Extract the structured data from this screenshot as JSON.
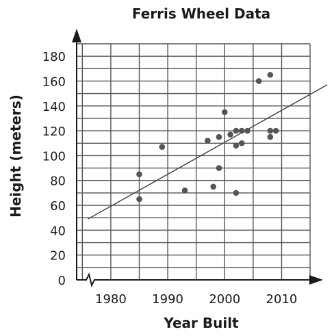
{
  "chart_data": {
    "type": "scatter",
    "title": "Ferris Wheel Data",
    "xlabel": "Year Built",
    "ylabel": "Height (meters)",
    "xlim": [
      1974,
      2018
    ],
    "ylim": [
      0,
      190
    ],
    "x_ticks": [
      1980,
      1990,
      2000,
      2010
    ],
    "y_ticks": [
      0,
      20,
      40,
      60,
      80,
      100,
      120,
      140,
      160,
      180
    ],
    "grid": true,
    "x_axis_break": true,
    "points": [
      {
        "x": 1985,
        "y": 85
      },
      {
        "x": 1985,
        "y": 65
      },
      {
        "x": 1989,
        "y": 107
      },
      {
        "x": 1993,
        "y": 72
      },
      {
        "x": 1997,
        "y": 112
      },
      {
        "x": 1998,
        "y": 75
      },
      {
        "x": 1999,
        "y": 115
      },
      {
        "x": 1999,
        "y": 90
      },
      {
        "x": 2000,
        "y": 135
      },
      {
        "x": 2001,
        "y": 117
      },
      {
        "x": 2002,
        "y": 120
      },
      {
        "x": 2002,
        "y": 108
      },
      {
        "x": 2002,
        "y": 70
      },
      {
        "x": 2003,
        "y": 120
      },
      {
        "x": 2003,
        "y": 110
      },
      {
        "x": 2004,
        "y": 120
      },
      {
        "x": 2006,
        "y": 160
      },
      {
        "x": 2008,
        "y": 165
      },
      {
        "x": 2008,
        "y": 120
      },
      {
        "x": 2008,
        "y": 115
      },
      {
        "x": 2009,
        "y": 120
      }
    ],
    "trend_line": {
      "x1": 1976,
      "y1": 49,
      "x2": 2018,
      "y2": 157
    }
  }
}
